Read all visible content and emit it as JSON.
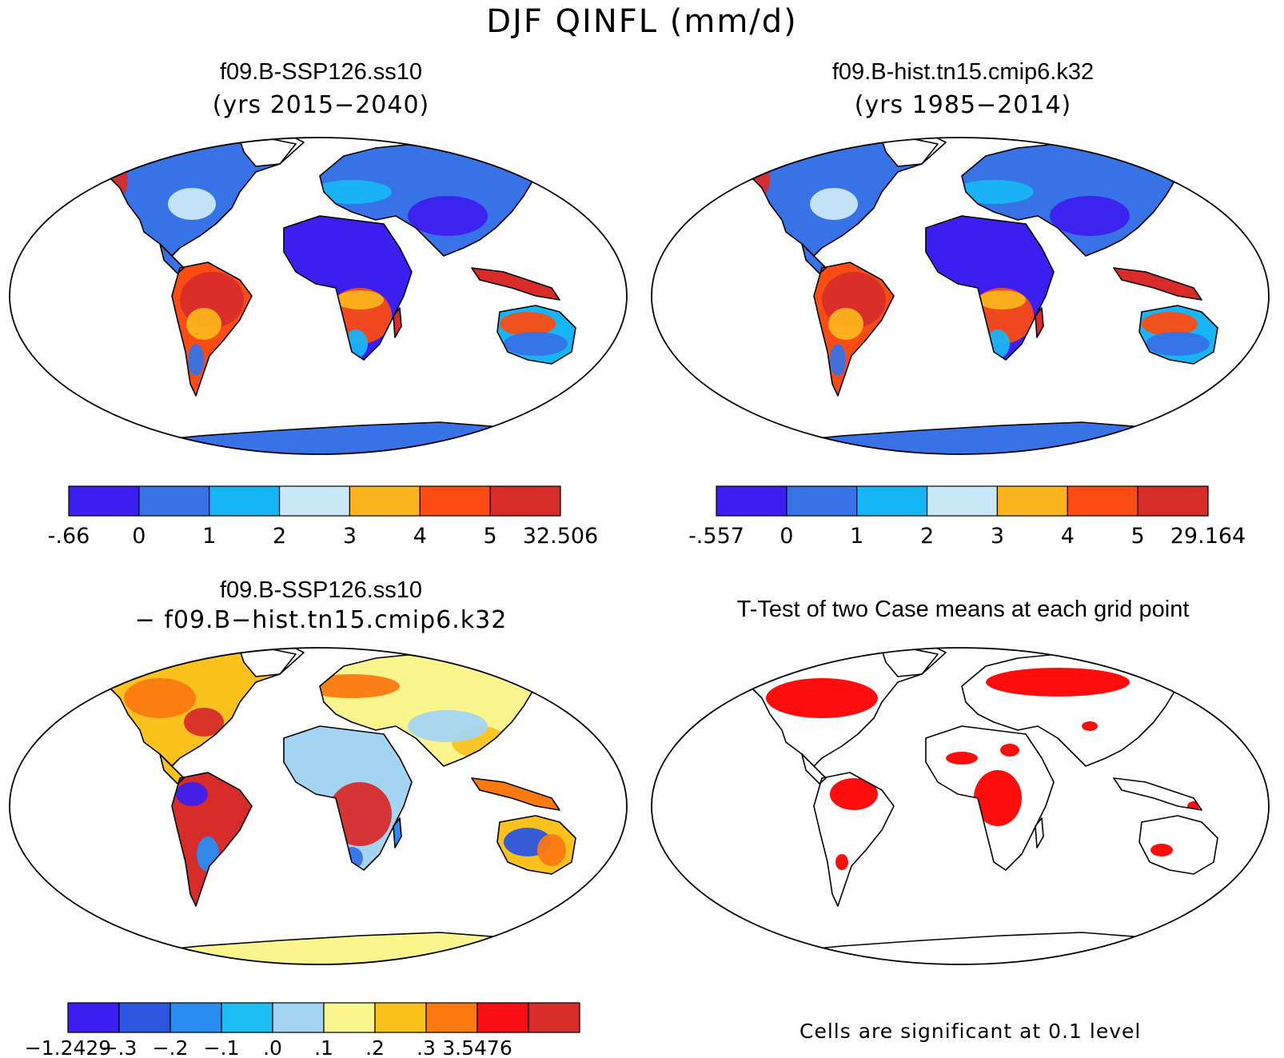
{
  "figure": {
    "title": "DJF QINFL (mm/d)"
  },
  "panels": [
    {
      "id": "top-left",
      "title": "f09.B-SSP126.ss10",
      "subtitle": "(yrs 2015−2040)",
      "colorbar": {
        "colors": [
          "#3c1ff0",
          "#3772e6",
          "#16b5f5",
          "#c9e8f7",
          "#fbb41e",
          "#fb4c13",
          "#d82c2a"
        ],
        "labels": [
          "-.66",
          "0",
          "1",
          "2",
          "3",
          "4",
          "5",
          "32.506"
        ]
      }
    },
    {
      "id": "top-right",
      "title": "f09.B-hist.tn15.cmip6.k32",
      "subtitle": "(yrs 1985−2014)",
      "colorbar": {
        "colors": [
          "#3c1ff0",
          "#3772e6",
          "#16b5f5",
          "#c9e8f7",
          "#fbb41e",
          "#fb4c13",
          "#d82c2a"
        ],
        "labels": [
          "-.557",
          "0",
          "1",
          "2",
          "3",
          "4",
          "5",
          "29.164"
        ]
      }
    },
    {
      "id": "bottom-left",
      "title": "f09.B-SSP126.ss10",
      "subtitle": "− f09.B−hist.tn15.cmip6.k32",
      "colorbar": {
        "colors": [
          "#3c1ff0",
          "#2c55e0",
          "#2a8cf2",
          "#1cbcf5",
          "#a3d5f3",
          "#fbf58e",
          "#fbc21e",
          "#fb7a10",
          "#f90f13",
          "#d82c2a"
        ],
        "labels": [
          "−1.2429",
          "−.3",
          "−.2",
          "−.1",
          ".0",
          ".1",
          ".2",
          ".3",
          "3.5476"
        ]
      }
    },
    {
      "id": "bottom-right",
      "title": "T-Test of two Case means at each grid point",
      "note": "Cells are significant at 0.1 level",
      "significance_color": "#ff0000"
    }
  ]
}
